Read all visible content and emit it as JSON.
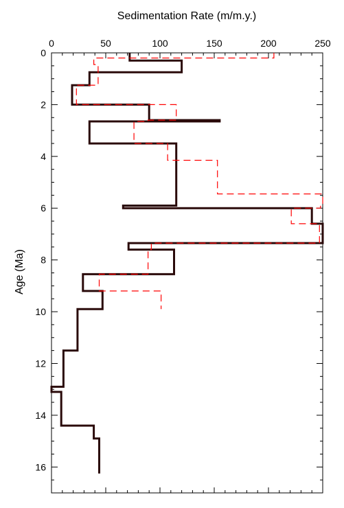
{
  "chart_data": {
    "type": "line",
    "orientation": "x-top, y-inverted",
    "xlabel": "Sedimentation Rate (m/m.y.)",
    "ylabel": "Age (Ma)",
    "xlim": [
      0,
      250
    ],
    "ylim": [
      0,
      17
    ],
    "x_ticks": [
      "0",
      "50",
      "100",
      "150",
      "200",
      "250"
    ],
    "y_ticks": [
      "0",
      "2",
      "4",
      "6",
      "8",
      "10",
      "12",
      "14",
      "16"
    ],
    "y_inverted": true,
    "grid": false,
    "series": [
      {
        "style": "solid",
        "color": "#2a0a0a",
        "points": [
          [
            72,
            0.0
          ],
          [
            72,
            0.3
          ],
          [
            120,
            0.3
          ],
          [
            120,
            0.75
          ],
          [
            35,
            0.75
          ],
          [
            35,
            1.25
          ],
          [
            19,
            1.25
          ],
          [
            19,
            2.0
          ],
          [
            90,
            2.0
          ],
          [
            90,
            2.6
          ],
          [
            155,
            2.6
          ],
          [
            155,
            2.65
          ],
          [
            35,
            2.65
          ],
          [
            35,
            3.5
          ],
          [
            115,
            3.5
          ],
          [
            115,
            5.9
          ],
          [
            66,
            5.9
          ],
          [
            66,
            6.0
          ],
          [
            240,
            6.0
          ],
          [
            240,
            6.6
          ],
          [
            250,
            6.6
          ],
          [
            250,
            7.35
          ],
          [
            71,
            7.35
          ],
          [
            71,
            7.6
          ],
          [
            113,
            7.6
          ],
          [
            113,
            8.55
          ],
          [
            29,
            8.55
          ],
          [
            29,
            9.2
          ],
          [
            47,
            9.2
          ],
          [
            47,
            9.9
          ],
          [
            24,
            9.9
          ],
          [
            24,
            11.5
          ],
          [
            11,
            11.5
          ],
          [
            11,
            12.9
          ],
          [
            0,
            12.9
          ],
          [
            0,
            13.1
          ],
          [
            9,
            13.1
          ],
          [
            9,
            14.4
          ],
          [
            39,
            14.4
          ],
          [
            39,
            14.9
          ],
          [
            44,
            14.9
          ],
          [
            44,
            16.25
          ]
        ]
      },
      {
        "style": "dashed",
        "color": "#ff0000",
        "points": [
          [
            205,
            0.0
          ],
          [
            205,
            0.2
          ],
          [
            39,
            0.2
          ],
          [
            39,
            0.45
          ],
          [
            43,
            0.45
          ],
          [
            43,
            1.25
          ],
          [
            23,
            1.25
          ],
          [
            23,
            2.0
          ],
          [
            115,
            2.0
          ],
          [
            115,
            2.6
          ],
          [
            89,
            2.6
          ],
          [
            89,
            2.65
          ],
          [
            76,
            2.65
          ],
          [
            76,
            3.5
          ],
          [
            107,
            3.5
          ],
          [
            107,
            4.15
          ],
          [
            153,
            4.15
          ],
          [
            153,
            5.45
          ],
          [
            250,
            5.45
          ],
          [
            250,
            5.9
          ],
          [
            248,
            5.9
          ],
          [
            248,
            6.0
          ],
          [
            221,
            6.0
          ],
          [
            221,
            6.6
          ],
          [
            247,
            6.6
          ],
          [
            247,
            7.35
          ],
          [
            92,
            7.35
          ],
          [
            92,
            7.6
          ],
          [
            89,
            7.6
          ],
          [
            89,
            8.55
          ],
          [
            44,
            8.55
          ],
          [
            44,
            9.2
          ],
          [
            101,
            9.2
          ],
          [
            101,
            9.9
          ]
        ]
      }
    ]
  }
}
